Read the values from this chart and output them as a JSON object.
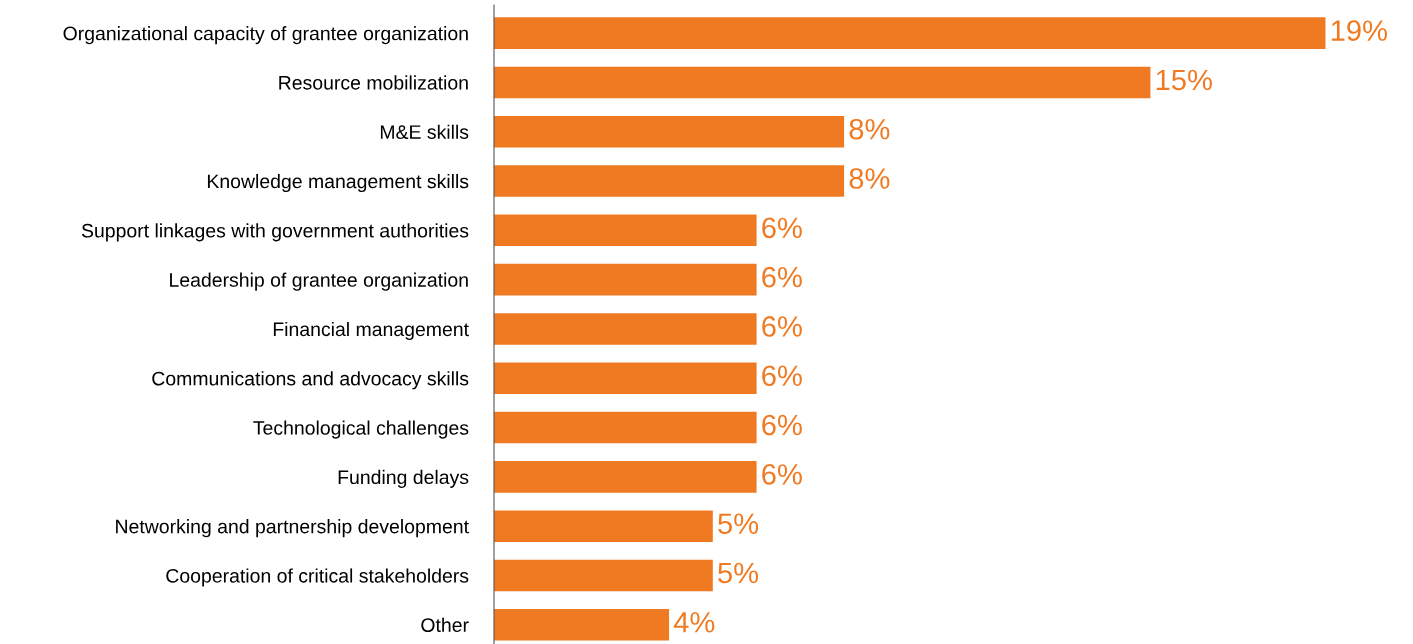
{
  "chart_data": {
    "type": "bar",
    "orientation": "horizontal",
    "categories": [
      "Organizational capacity of grantee organization",
      "Resource mobilization",
      "M&E skills",
      "Knowledge management skills",
      "Support linkages with government authorities",
      "Leadership of grantee organization",
      "Financial management",
      "Communications and advocacy skills",
      "Technological challenges",
      "Funding delays",
      "Networking and partnership development",
      "Cooperation of critical stakeholders",
      "Other"
    ],
    "values": [
      19,
      15,
      8,
      8,
      6,
      6,
      6,
      6,
      6,
      6,
      5,
      5,
      4
    ],
    "value_labels": [
      "19%",
      "15%",
      "8%",
      "8%",
      "6%",
      "6%",
      "6%",
      "6%",
      "6%",
      "6%",
      "5%",
      "5%",
      "4%"
    ],
    "color": "#f07a22",
    "grid": false,
    "legend": false
  }
}
